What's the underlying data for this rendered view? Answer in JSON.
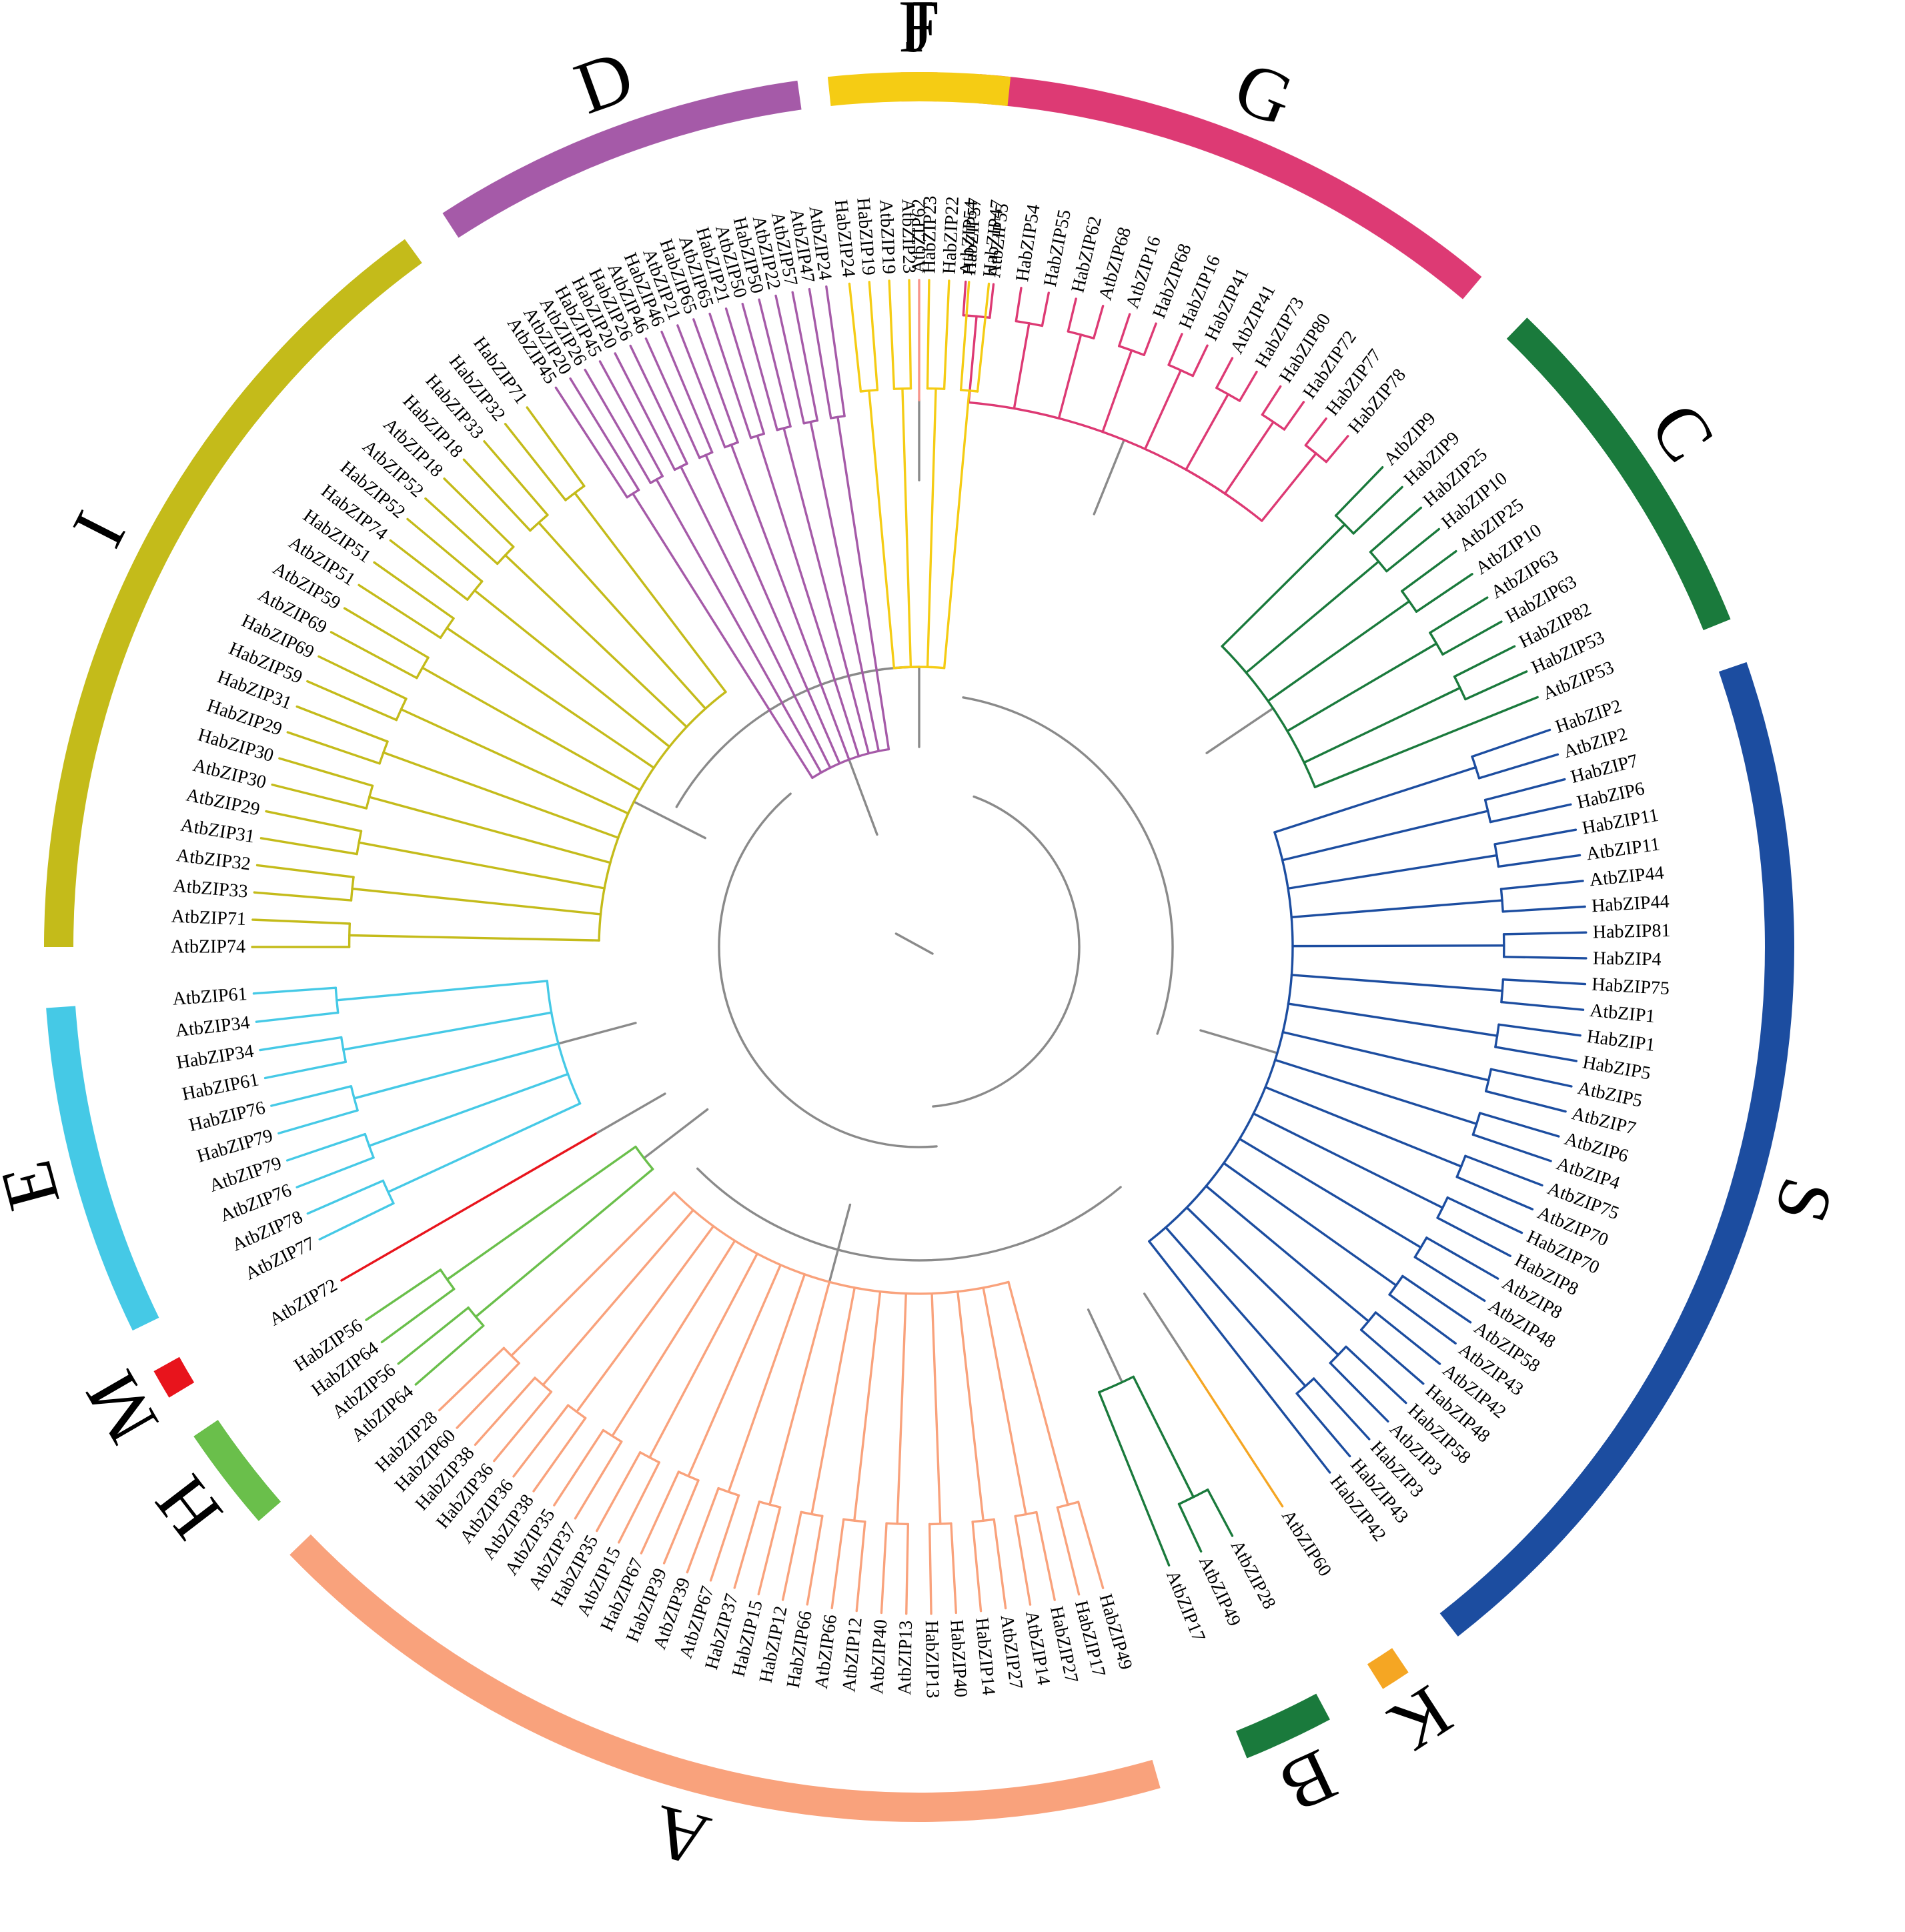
{
  "figure": {
    "kind": "circular phylogenetic tree of bZIP proteins (Atb = Arabidopsis, Hab = second species)",
    "backbone_color": "#8a8a8a"
  },
  "groups": [
    {
      "id": "J",
      "label": "J",
      "color": "#f7958a",
      "leaves": [
        "AtbZIP62"
      ]
    },
    {
      "id": "G",
      "label": "G",
      "color": "#dd3a74",
      "leaves": [
        "AtbZIP54",
        "AtbZIP55",
        "HabZIP54",
        "HabZIP55",
        "HabZIP62",
        "AtbZIP68",
        "AtbZIP16",
        "HabZIP68",
        "HabZIP16",
        "HabZIP41",
        "AtbZIP41",
        "HabZIP73",
        "HabZIP80",
        "HabZIP72",
        "HabZIP77",
        "HabZIP78"
      ]
    },
    {
      "id": "C",
      "label": "C",
      "color": "#1a7a3c",
      "leaves": [
        "AtbZIP9",
        "HabZIP9",
        "HabZIP25",
        "HabZIP10",
        "AtbZIP25",
        "AtbZIP10",
        "AtbZIP63",
        "HabZIP63",
        "HabZIP82",
        "HabZIP53",
        "AtbZIP53"
      ]
    },
    {
      "id": "S",
      "label": "S",
      "color": "#1c4da0",
      "leaves": [
        "HabZIP2",
        "AtbZIP2",
        "HabZIP7",
        "HabZIP6",
        "HabZIP11",
        "AtbZIP11",
        "AtbZIP44",
        "HabZIP44",
        "HabZIP81",
        "HabZIP4",
        "HabZIP75",
        "AtbZIP1",
        "HabZIP1",
        "HabZIP5",
        "AtbZIP5",
        "AtbZIP7",
        "AtbZIP6",
        "AtbZIP4",
        "AtbZIP75",
        "AtbZIP70",
        "HabZIP70",
        "HabZIP8",
        "AtbZIP8",
        "AtbZIP48",
        "AtbZIP58",
        "AtbZIP43",
        "AtbZIP42",
        "HabZIP48",
        "HabZIP58",
        "AtbZIP3",
        "HabZIP3",
        "HabZIP43",
        "HabZIP42"
      ]
    },
    {
      "id": "K",
      "label": "K",
      "color": "#f5a623",
      "leaves": [
        "AtbZIP60"
      ]
    },
    {
      "id": "B",
      "label": "B",
      "color": "#1a7a3c",
      "leaves": [
        "AtbZIP28",
        "AtbZIP49",
        "AtbZIP17"
      ]
    },
    {
      "id": "A",
      "label": "A",
      "color": "#f9a27c",
      "leaves": [
        "HabZIP49",
        "HabZIP17",
        "HabZIP27",
        "AtbZIP14",
        "AtbZIP27",
        "HabZIP14",
        "HabZIP40",
        "HabZIP13",
        "AtbZIP13",
        "AtbZIP40",
        "AtbZIP12",
        "AtbZIP66",
        "HabZIP66",
        "HabZIP12",
        "HabZIP15",
        "HabZIP37",
        "AtbZIP67",
        "AtbZIP39",
        "HabZIP39",
        "HabZIP67",
        "AtbZIP15",
        "HabZIP35",
        "AtbZIP37",
        "AtbZIP35",
        "AtbZIP38",
        "AtbZIP36",
        "HabZIP36",
        "HabZIP38",
        "HabZIP60",
        "HabZIP28"
      ]
    },
    {
      "id": "H",
      "label": "H",
      "color": "#6abf4b",
      "leaves": [
        "AtbZIP64",
        "AtbZIP56",
        "HabZIP64",
        "HabZIP56"
      ]
    },
    {
      "id": "M",
      "label": "M",
      "color": "#e8141c",
      "leaves": [
        "AtbZIP72"
      ]
    },
    {
      "id": "E",
      "label": "E",
      "color": "#45c9e6",
      "leaves": [
        "AtbZIP77",
        "AtbZIP78",
        "AtbZIP76",
        "AtbZIP79",
        "HabZIP79",
        "HabZIP76",
        "HabZIP61",
        "HabZIP34",
        "AtbZIP34",
        "AtbZIP61"
      ]
    },
    {
      "id": "I",
      "label": "I",
      "color": "#c4bb1a",
      "leaves": [
        "AtbZIP74",
        "AtbZIP71",
        "AtbZIP33",
        "AtbZIP32",
        "AtbZIP31",
        "AtbZIP29",
        "AtbZIP30",
        "HabZIP30",
        "HabZIP29",
        "HabZIP31",
        "HabZIP59",
        "HabZIP69",
        "AtbZIP69",
        "AtbZIP59",
        "AtbZIP51",
        "HabZIP51",
        "HabZIP74",
        "HabZIP52",
        "AtbZIP52",
        "AtbZIP18",
        "HabZIP18",
        "HabZIP33",
        "HabZIP32",
        "HabZIP71"
      ]
    },
    {
      "id": "D",
      "label": "D",
      "color": "#a55aa8",
      "leaves": [
        "AtbZIP45",
        "AtbZIP20",
        "AtbZIP26",
        "HabZIP45",
        "HabZIP20",
        "HabZIP26",
        "AtbZIP46",
        "HabZIP46",
        "AtbZIP21",
        "HabZIP65",
        "AtbZIP65",
        "HabZIP21",
        "AtbZIP50",
        "HabZIP50",
        "AtbZIP22",
        "AtbZIP57",
        "AtbZIP47",
        "AtbZIP24"
      ]
    },
    {
      "id": "F",
      "label": "F",
      "color": "#f5cc14",
      "leaves": [
        "HabZIP24",
        "HabZIP19",
        "AtbZIP19",
        "AtbZIP23",
        "HabZIP23",
        "HabZIP22",
        "HabZIP57",
        "HabZIP47"
      ]
    }
  ]
}
